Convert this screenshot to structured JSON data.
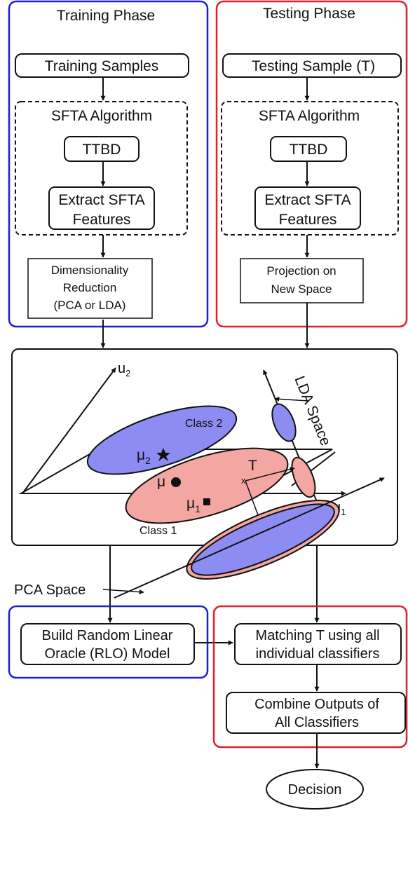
{
  "training": {
    "title": "Training Phase",
    "samples": "Training Samples",
    "sfta_title": "SFTA Algorithm",
    "ttbd": "TTBD",
    "extract_line1": "Extract SFTA",
    "extract_line2": "Features",
    "dimred_line1": "Dimensionality",
    "dimred_line2": "Reduction",
    "dimred_line3": "(PCA or LDA)"
  },
  "testing": {
    "title": "Testing Phase",
    "sample": "Testing Sample (T)",
    "sfta_title": "SFTA Algorithm",
    "ttbd": "TTBD",
    "extract_line1": "Extract SFTA",
    "extract_line2": "Features",
    "proj_line1": "Projection on",
    "proj_line2": "New Space"
  },
  "space": {
    "u2": "u",
    "u2_sub": "2",
    "u1": "u",
    "u1_sub": "1",
    "lda_space": "LDA Space",
    "pca_space": "PCA Space",
    "class2": "Class 2",
    "class1": "Class 1",
    "mu2": "μ",
    "mu2_sub": "2",
    "mu1": "μ",
    "mu1_sub": "1",
    "mu": "μ",
    "mu_small": "μ",
    "t_label": "T",
    "t_mark": "x"
  },
  "bottom": {
    "rlo_line1": "Build Random Linear",
    "rlo_line2": "Oracle (RLO) Model",
    "match_line1": "Matching T using all",
    "match_line2": "individual classifiers",
    "combine_line1": "Combine Outputs of",
    "combine_line2": "All Classifiers",
    "decision": "Decision"
  },
  "colors": {
    "training_border": "#1f1fd0",
    "testing_border": "#e0202a",
    "class2_fill": "#8c8cf2",
    "class1_fill": "#f4a6a2",
    "stroke": "#111111"
  }
}
